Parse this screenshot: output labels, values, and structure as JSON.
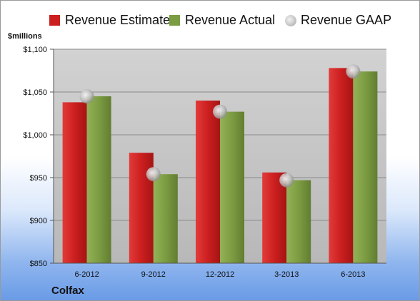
{
  "company": "Colfax",
  "unit_label": "$millions",
  "colors": {
    "estimate": "#cc1f1f",
    "actual": "#7c9c42",
    "gaap": "#c0c0c0",
    "plot_bg": "#cfcfcf"
  },
  "chart_data": {
    "type": "bar",
    "categories": [
      "6-2012",
      "9-2012",
      "12-2012",
      "3-2013",
      "6-2013"
    ],
    "series": [
      {
        "name": "Revenue Estimate",
        "kind": "bar",
        "values": [
          1038,
          979,
          1040,
          956,
          1078
        ]
      },
      {
        "name": "Revenue Actual",
        "kind": "bar",
        "values": [
          1045,
          954,
          1027,
          947,
          1074
        ]
      },
      {
        "name": "Revenue GAAP",
        "kind": "marker",
        "values": [
          1045,
          954,
          1027,
          947,
          1074
        ]
      }
    ],
    "ylim": [
      850,
      1100
    ],
    "y_ticks": [
      850,
      900,
      950,
      1000,
      1050,
      1100
    ],
    "y_tick_labels": [
      "$850",
      "$900",
      "$950",
      "$1,000",
      "$1,050",
      "$1,100"
    ],
    "ylabel": "$millions",
    "grid": true,
    "legend_position": "top"
  }
}
